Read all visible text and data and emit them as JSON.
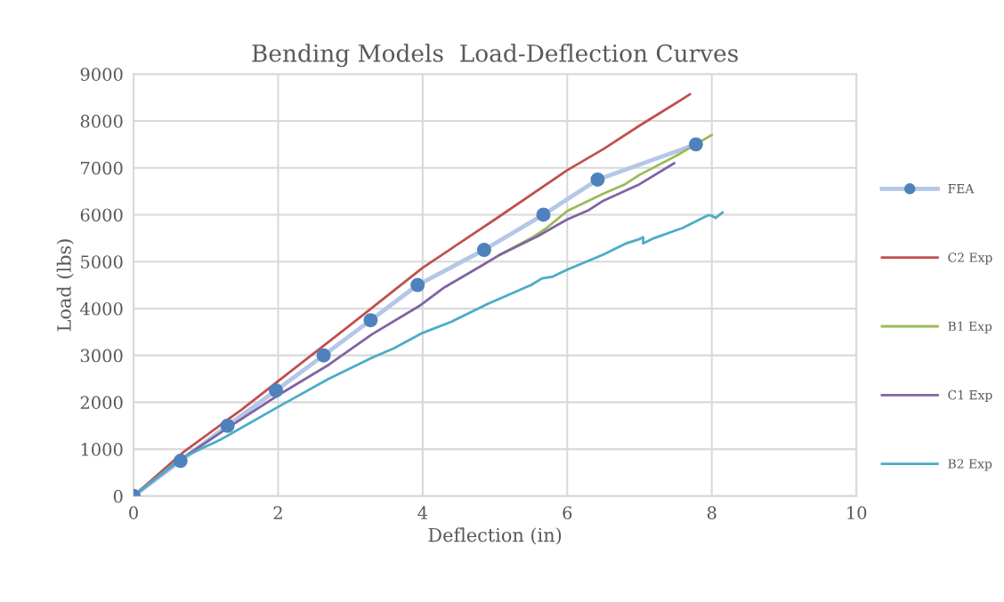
{
  "chart_data": {
    "type": "line",
    "title": "Bending Models  Load-Deflection Curves",
    "xlabel": "Deflection (in)",
    "ylabel": "Load (lbs)",
    "xlim": [
      0,
      10
    ],
    "xticks": [
      0,
      2,
      4,
      6,
      8,
      10
    ],
    "ylim": [
      0,
      9000
    ],
    "yticks": [
      0,
      1000,
      2000,
      3000,
      4000,
      5000,
      6000,
      7000,
      8000,
      9000
    ],
    "grid": true,
    "legend": "right",
    "series": [
      {
        "name": "FEA",
        "color": "#b4c7e7",
        "marker": "circle",
        "x": [
          0,
          0.65,
          1.3,
          1.97,
          2.63,
          3.28,
          3.93,
          4.85,
          5.67,
          6.42,
          7.78
        ],
        "values": [
          0,
          750,
          1500,
          2250,
          3000,
          3750,
          4500,
          5250,
          6000,
          6750,
          7500
        ]
      },
      {
        "name": "C2 Exp",
        "color": "#c0504d",
        "x": [
          0,
          0.7,
          1.5,
          2.0,
          3.0,
          4.0,
          5.0,
          6.0,
          6.5,
          7.0,
          7.7
        ],
        "values": [
          0,
          950,
          1850,
          2450,
          3650,
          4870,
          5900,
          6950,
          7400,
          7900,
          8570
        ]
      },
      {
        "name": "B1 Exp",
        "color": "#9bbb59",
        "x": [
          5.05,
          5.5,
          5.7,
          6.0,
          6.5,
          6.8,
          7.0,
          7.5,
          8.0
        ],
        "values": [
          5130,
          5500,
          5700,
          6080,
          6450,
          6650,
          6850,
          7250,
          7700
        ]
      },
      {
        "name": "C1 Exp",
        "color": "#8064a2",
        "x": [
          0,
          0.65,
          1.3,
          2.0,
          2.7,
          3.3,
          3.95,
          4.3,
          4.8,
          5.05,
          5.6,
          6.0,
          6.3,
          6.5,
          7.0,
          7.48
        ],
        "values": [
          0,
          780,
          1450,
          2150,
          2800,
          3450,
          4050,
          4450,
          4900,
          5130,
          5550,
          5900,
          6100,
          6300,
          6650,
          7100
        ]
      },
      {
        "name": "B2 Exp",
        "color": "#4bacc6",
        "x": [
          0,
          0.65,
          1.2,
          2.0,
          2.7,
          3.3,
          3.6,
          4.0,
          4.4,
          4.9,
          5.5,
          5.65,
          5.8,
          6.0,
          6.5,
          6.8,
          7.0,
          7.05,
          7.05,
          7.2,
          7.6,
          7.95,
          8.0,
          8.05,
          8.15
        ],
        "values": [
          0,
          800,
          1200,
          1900,
          2500,
          2950,
          3150,
          3480,
          3720,
          4100,
          4500,
          4640,
          4680,
          4830,
          5150,
          5380,
          5480,
          5520,
          5390,
          5500,
          5720,
          5990,
          5980,
          5930,
          6050
        ]
      }
    ]
  }
}
